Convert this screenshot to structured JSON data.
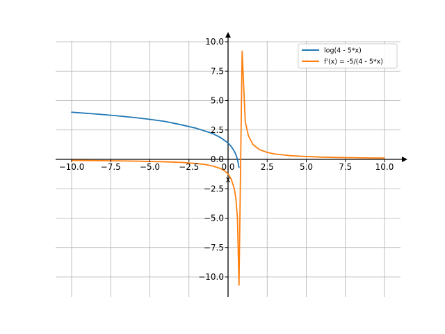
{
  "chart_data": {
    "type": "line",
    "title": "",
    "xlabel": "x",
    "ylabel": "",
    "xlim": [
      -10.5,
      11.5
    ],
    "ylim": [
      -11.7,
      10.5
    ],
    "grid": true,
    "legend_position": "top-right",
    "x_ticks": [
      -10.0,
      -7.5,
      -5.0,
      -2.5,
      0.0,
      2.5,
      5.0,
      7.5,
      10.0
    ],
    "y_ticks": [
      -10.0,
      -7.5,
      -5.0,
      -2.5,
      0.0,
      2.5,
      5.0,
      7.5,
      10.0
    ],
    "x_tick_labels": [
      "−10.0",
      "−7.5",
      "−5.0",
      "−2.5",
      "0.0",
      "2.5",
      "5.0",
      "7.5",
      "10.0"
    ],
    "y_tick_labels": [
      "−10.0",
      "−7.5",
      "−5.0",
      "−2.5",
      "0.0",
      "2.5",
      "5.0",
      "7.5",
      "10.0"
    ],
    "series": [
      {
        "name": "log(4 - 5*x)",
        "color": "#1f77b4",
        "x": [
          -10,
          -9,
          -8,
          -7,
          -6,
          -5,
          -4,
          -3,
          -2,
          -1.5,
          -1,
          -0.5,
          0,
          0.2,
          0.4,
          0.5,
          0.6,
          0.7
        ],
        "y": [
          4.01,
          3.91,
          3.81,
          3.69,
          3.56,
          3.4,
          3.22,
          2.94,
          2.63,
          2.42,
          2.2,
          1.87,
          1.39,
          1.1,
          0.69,
          0.41,
          0.0,
          -0.69
        ]
      },
      {
        "name": "f'(x) = -5/(4 - 5*x)",
        "color": "#ff7f0e",
        "x": [
          -10,
          -8,
          -6,
          -4,
          -3,
          -2,
          -1.5,
          -1,
          -0.5,
          -0.2,
          0,
          0.2,
          0.4,
          0.5,
          0.6,
          0.7,
          0.9,
          1.1,
          1.3,
          1.6,
          2.0,
          2.5,
          3,
          4,
          5,
          6,
          7,
          8,
          9,
          10
        ],
        "y": [
          -0.09,
          -0.11,
          -0.15,
          -0.21,
          -0.26,
          -0.36,
          -0.43,
          -0.56,
          -0.77,
          -1.0,
          -1.25,
          -1.67,
          -2.5,
          -3.33,
          -5.0,
          -10.7,
          9.2,
          3.2,
          2.0,
          1.25,
          0.83,
          0.59,
          0.45,
          0.31,
          0.24,
          0.19,
          0.16,
          0.14,
          0.12,
          0.11
        ]
      }
    ]
  }
}
